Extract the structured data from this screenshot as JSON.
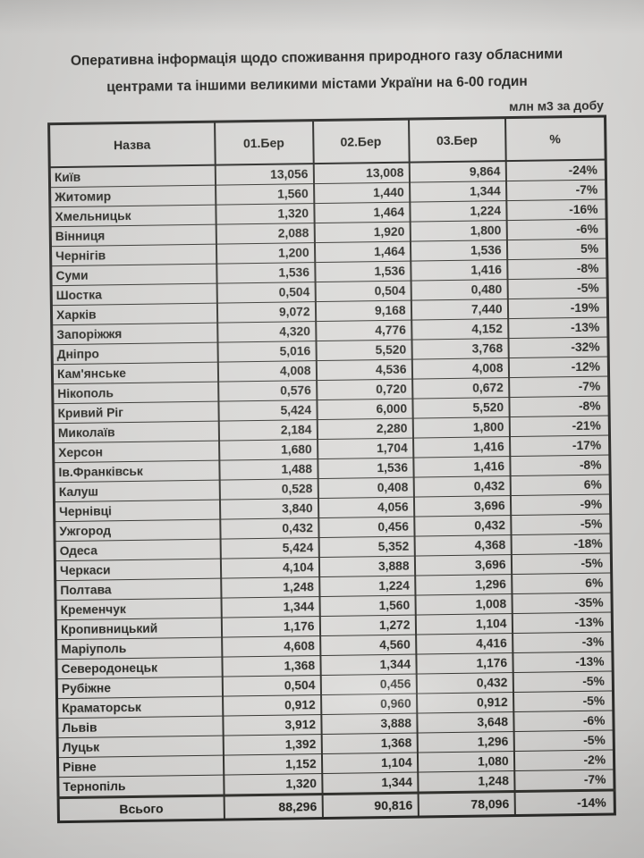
{
  "document": {
    "title_lines": [
      "Оперативна інформація щодо споживання природного газу обласними",
      "центрами та іншими великими містами України на 6-00 годин"
    ],
    "unit_label": "млн м3 за добу"
  },
  "table": {
    "columns": [
      "Назва",
      "01.Бер",
      "02.Бер",
      "03.Бер",
      "%"
    ],
    "rows": [
      {
        "name": "Київ",
        "d1": "13,056",
        "d2": "13,008",
        "d3": "9,864",
        "pct": "-24%"
      },
      {
        "name": "Житомир",
        "d1": "1,560",
        "d2": "1,440",
        "d3": "1,344",
        "pct": "-7%"
      },
      {
        "name": "Хмельницьк",
        "d1": "1,320",
        "d2": "1,464",
        "d3": "1,224",
        "pct": "-16%"
      },
      {
        "name": "Вінниця",
        "d1": "2,088",
        "d2": "1,920",
        "d3": "1,800",
        "pct": "-6%"
      },
      {
        "name": "Чернігів",
        "d1": "1,200",
        "d2": "1,464",
        "d3": "1,536",
        "pct": "5%"
      },
      {
        "name": "Суми",
        "d1": "1,536",
        "d2": "1,536",
        "d3": "1,416",
        "pct": "-8%"
      },
      {
        "name": "Шостка",
        "d1": "0,504",
        "d2": "0,504",
        "d3": "0,480",
        "pct": "-5%"
      },
      {
        "name": "Харків",
        "d1": "9,072",
        "d2": "9,168",
        "d3": "7,440",
        "pct": "-19%"
      },
      {
        "name": "Запоріжжя",
        "d1": "4,320",
        "d2": "4,776",
        "d3": "4,152",
        "pct": "-13%"
      },
      {
        "name": "Дніпро",
        "d1": "5,016",
        "d2": "5,520",
        "d3": "3,768",
        "pct": "-32%"
      },
      {
        "name": "Кам'янське",
        "d1": "4,008",
        "d2": "4,536",
        "d3": "4,008",
        "pct": "-12%"
      },
      {
        "name": "Нікополь",
        "d1": "0,576",
        "d2": "0,720",
        "d3": "0,672",
        "pct": "-7%"
      },
      {
        "name": "Кривий Ріг",
        "d1": "5,424",
        "d2": "6,000",
        "d3": "5,520",
        "pct": "-8%"
      },
      {
        "name": "Миколаїв",
        "d1": "2,184",
        "d2": "2,280",
        "d3": "1,800",
        "pct": "-21%"
      },
      {
        "name": "Херсон",
        "d1": "1,680",
        "d2": "1,704",
        "d3": "1,416",
        "pct": "-17%"
      },
      {
        "name": "Ів.Франківськ",
        "d1": "1,488",
        "d2": "1,536",
        "d3": "1,416",
        "pct": "-8%"
      },
      {
        "name": "Калуш",
        "d1": "0,528",
        "d2": "0,408",
        "d3": "0,432",
        "pct": "6%"
      },
      {
        "name": "Чернівці",
        "d1": "3,840",
        "d2": "4,056",
        "d3": "3,696",
        "pct": "-9%"
      },
      {
        "name": "Ужгород",
        "d1": "0,432",
        "d2": "0,456",
        "d3": "0,432",
        "pct": "-5%"
      },
      {
        "name": "Одеса",
        "d1": "5,424",
        "d2": "5,352",
        "d3": "4,368",
        "pct": "-18%"
      },
      {
        "name": "Черкаси",
        "d1": "4,104",
        "d2": "3,888",
        "d3": "3,696",
        "pct": "-5%"
      },
      {
        "name": "Полтава",
        "d1": "1,248",
        "d2": "1,224",
        "d3": "1,296",
        "pct": "6%"
      },
      {
        "name": "Кременчук",
        "d1": "1,344",
        "d2": "1,560",
        "d3": "1,008",
        "pct": "-35%"
      },
      {
        "name": "Кропивницький",
        "d1": "1,176",
        "d2": "1,272",
        "d3": "1,104",
        "pct": "-13%"
      },
      {
        "name": "Маріуполь",
        "d1": "4,608",
        "d2": "4,560",
        "d3": "4,416",
        "pct": "-3%"
      },
      {
        "name": "Северодонецьк",
        "d1": "1,368",
        "d2": "1,344",
        "d3": "1,176",
        "pct": "-13%"
      },
      {
        "name": "Рубіжне",
        "d1": "0,504",
        "d2": "0,456",
        "d3": "0,432",
        "pct": "-5%"
      },
      {
        "name": "Краматорськ",
        "d1": "0,912",
        "d2": "0,960",
        "d3": "0,912",
        "pct": "-5%"
      },
      {
        "name": "Львів",
        "d1": "3,912",
        "d2": "3,888",
        "d3": "3,648",
        "pct": "-6%"
      },
      {
        "name": "Луцьк",
        "d1": "1,392",
        "d2": "1,368",
        "d3": "1,296",
        "pct": "-5%"
      },
      {
        "name": "Рівне",
        "d1": "1,152",
        "d2": "1,104",
        "d3": "1,080",
        "pct": "-2%"
      },
      {
        "name": "Тернопіль",
        "d1": "1,320",
        "d2": "1,344",
        "d3": "1,248",
        "pct": "-7%"
      }
    ],
    "total": {
      "name": "Всього",
      "d1": "88,296",
      "d2": "90,816",
      "d3": "78,096",
      "pct": "-14%"
    }
  },
  "colors": {
    "paper": "#d5d4d2",
    "ink": "#232321",
    "table_border": "#2b2b29"
  }
}
